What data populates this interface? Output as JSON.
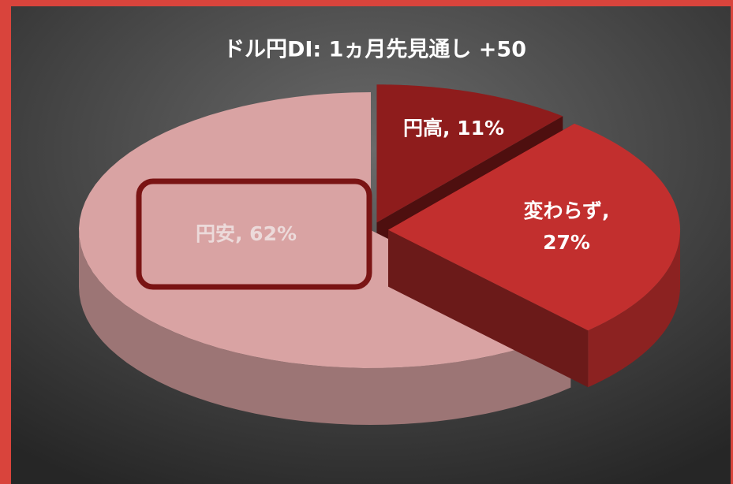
{
  "chart_data": {
    "type": "pie3d",
    "title": "ドル円DI: 1ヵ月先見通し +50",
    "categories": [
      "円高",
      "変わらず",
      "円安"
    ],
    "values": [
      11,
      27,
      62
    ],
    "value_labels": [
      "円高, 11%",
      "変わらず, 27%",
      "円安, 62%"
    ],
    "colors": [
      "#8e1c1c",
      "#c22f2e",
      "#d9a3a3"
    ]
  }
}
